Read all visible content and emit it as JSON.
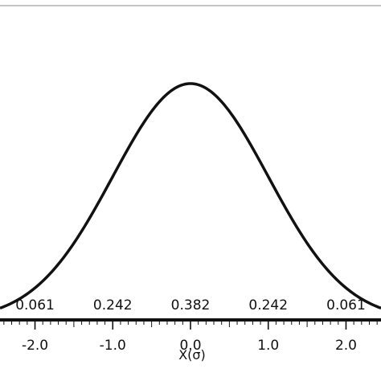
{
  "chart_data": {
    "type": "line",
    "title": "",
    "xlabel": "X(σ)",
    "ylabel": "",
    "xlim": [
      -2.45,
      2.45
    ],
    "grid": false,
    "legend": "none",
    "series": [
      {
        "function": "standard normal density",
        "x": [
          -2.45,
          -2.0,
          -1.5,
          -1.0,
          -0.5,
          0.0,
          0.5,
          1.0,
          1.5,
          2.0,
          2.45
        ],
        "y": [
          0.02,
          0.054,
          0.13,
          0.242,
          0.352,
          0.399,
          0.352,
          0.242,
          0.13,
          0.054,
          0.02
        ]
      }
    ],
    "tick_labels": [
      "-2.0",
      "-1.0",
      "0.0",
      "1.0",
      "2.0"
    ],
    "tick_values": [
      -2,
      -1,
      0,
      1,
      2
    ],
    "area_labels": [
      {
        "text": "0.061",
        "x": -2.0
      },
      {
        "text": "0.242",
        "x": -1.0
      },
      {
        "text": "0.382",
        "x": 0.0
      },
      {
        "text": "0.242",
        "x": 1.0
      },
      {
        "text": "0.061",
        "x": 2.0
      }
    ]
  },
  "colors": {
    "curve": "#111111",
    "axis": "#111111",
    "frame": "#888888",
    "background": "#ffffff"
  }
}
